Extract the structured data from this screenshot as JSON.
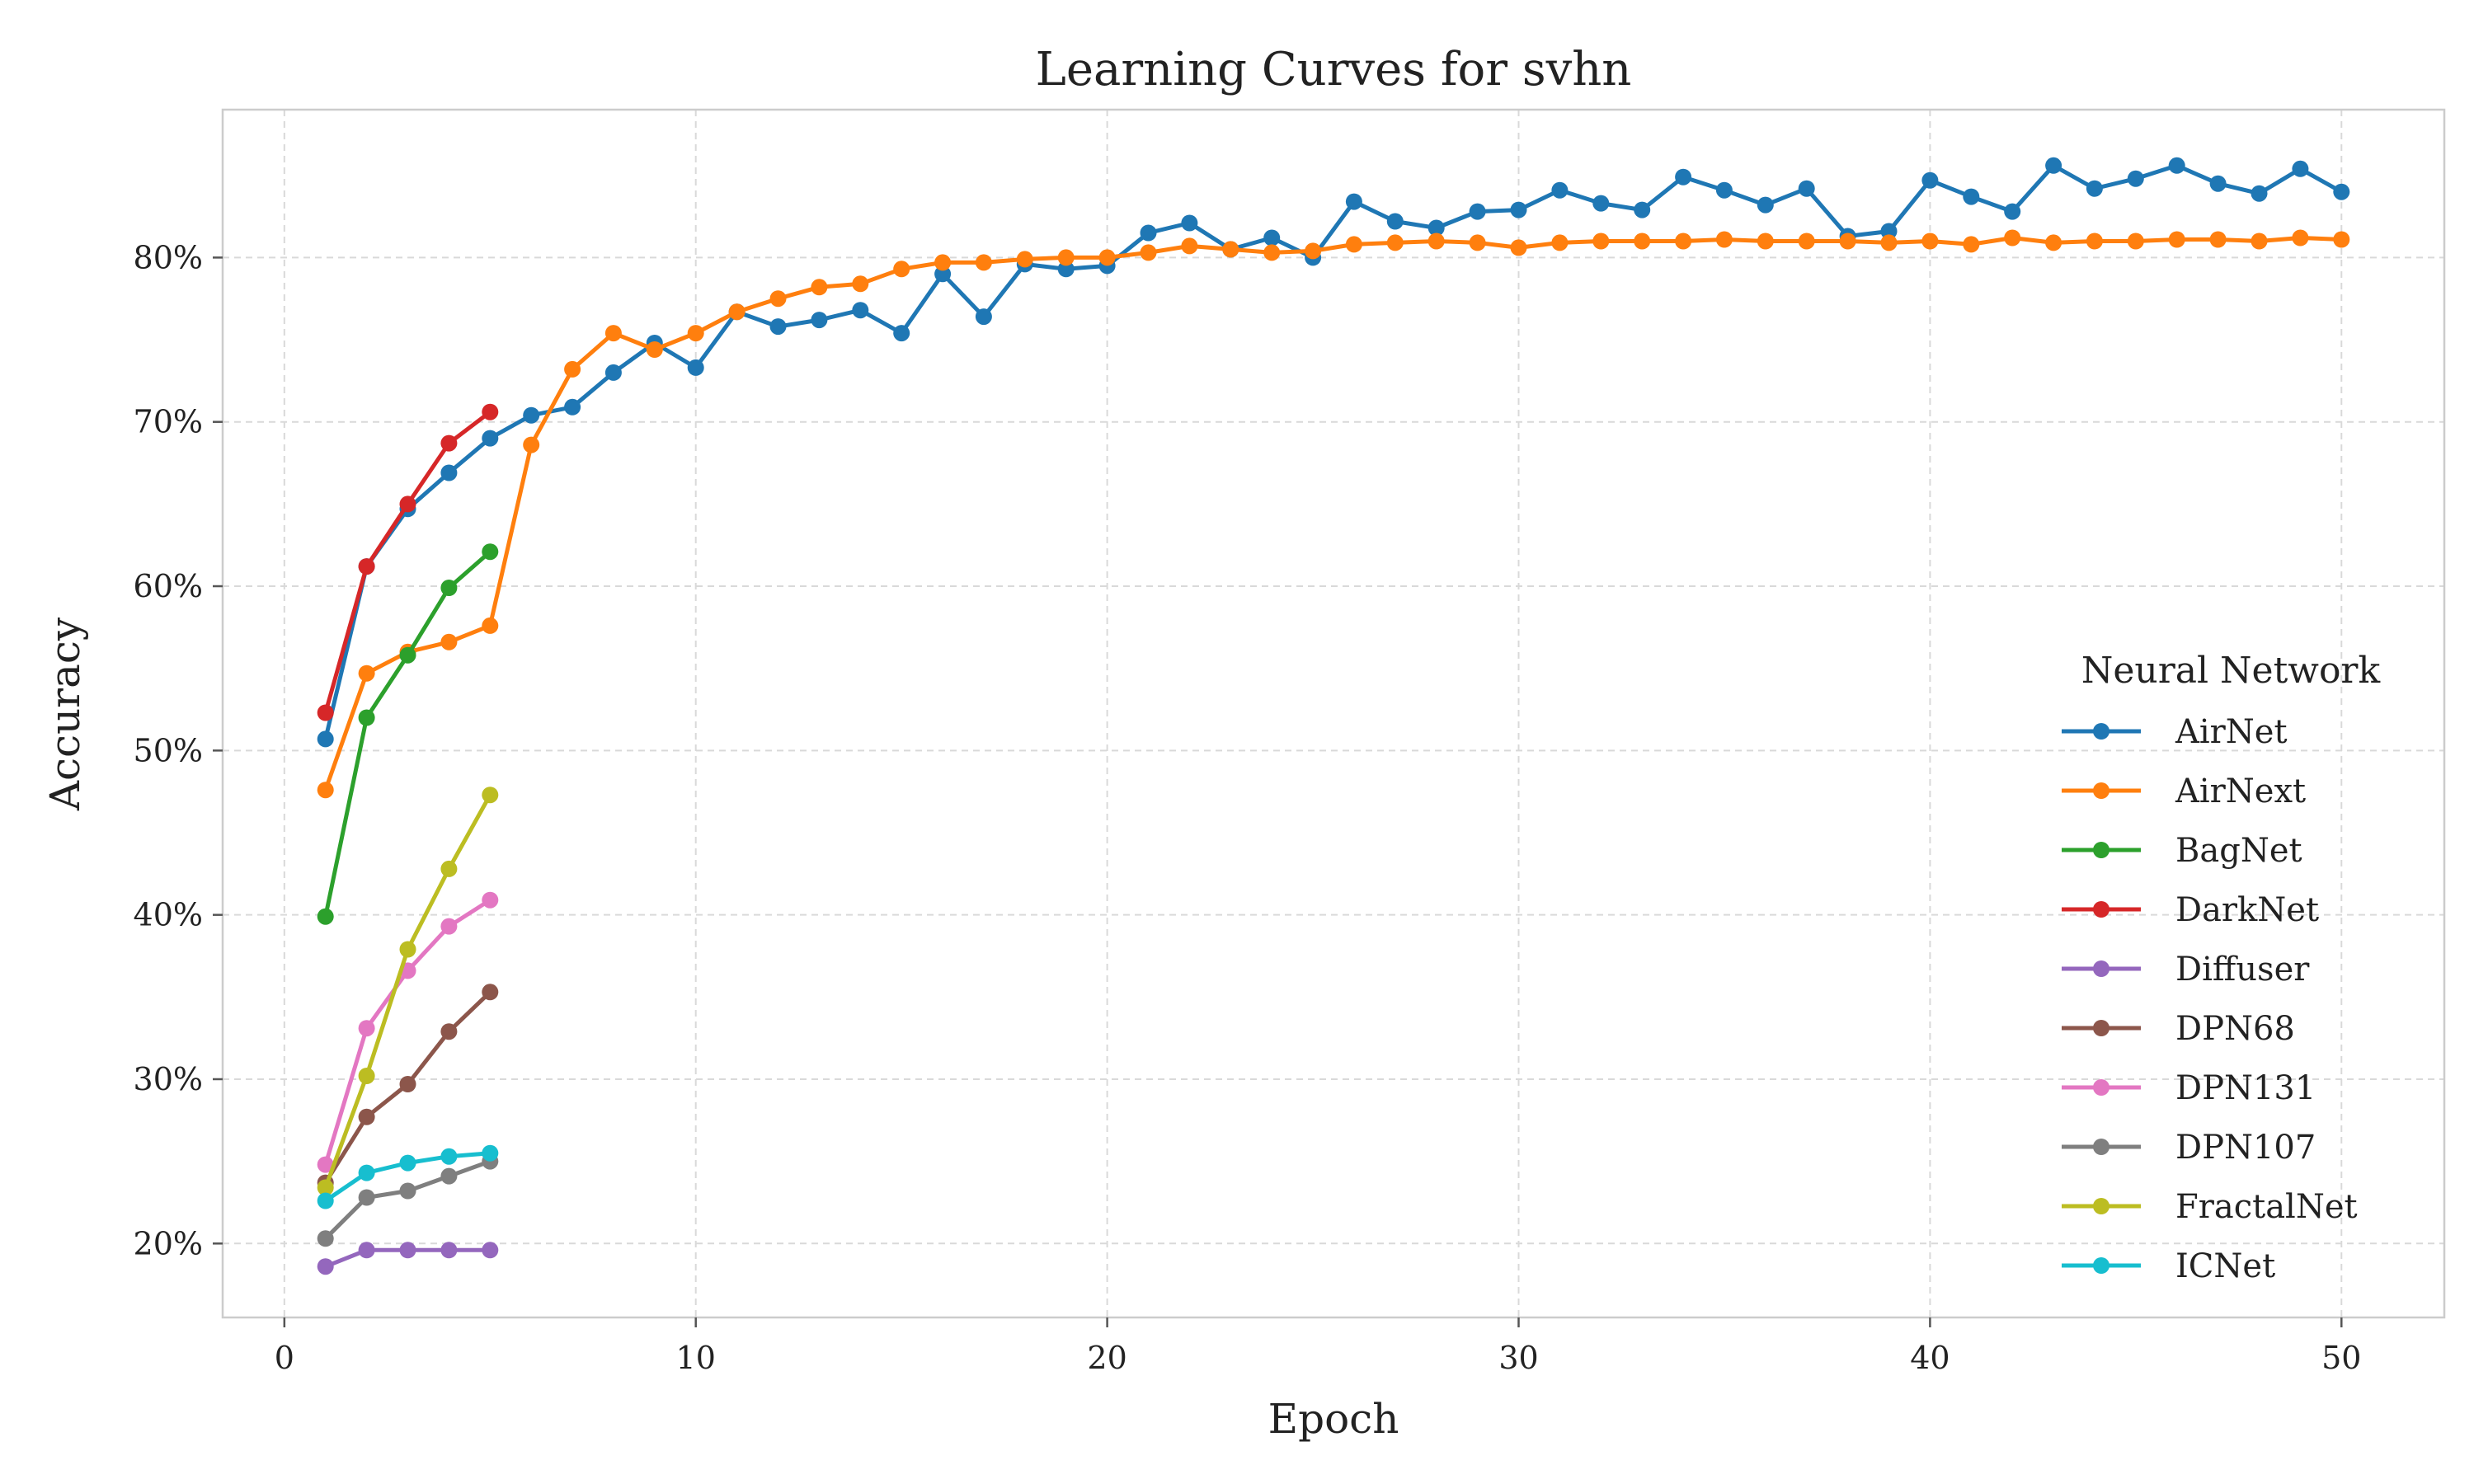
{
  "chart_data": {
    "type": "line",
    "title": "Learning Curves for svhn",
    "xlabel": "Epoch",
    "ylabel": "Accuracy",
    "xlim": [
      -1.5,
      52.5
    ],
    "ylim": [
      15.5,
      89.0
    ],
    "x_ticks": [
      0,
      10,
      20,
      30,
      40,
      50
    ],
    "x_tick_labels": [
      "0",
      "10",
      "20",
      "30",
      "40",
      "50"
    ],
    "y_ticks": [
      20,
      30,
      40,
      50,
      60,
      70,
      80
    ],
    "y_tick_labels": [
      "20%",
      "30%",
      "40%",
      "50%",
      "60%",
      "70%",
      "80%"
    ],
    "grid": true,
    "legend": {
      "title": "Neural Network",
      "placement": "right"
    },
    "series": [
      {
        "name": "AirNet",
        "color": "#1f77b4",
        "x": [
          1,
          2,
          3,
          4,
          5,
          6,
          7,
          8,
          9,
          10,
          11,
          12,
          13,
          14,
          15,
          16,
          17,
          18,
          19,
          20,
          21,
          22,
          23,
          24,
          25,
          26,
          27,
          28,
          29,
          30,
          31,
          32,
          33,
          34,
          35,
          36,
          37,
          38,
          39,
          40,
          41,
          42,
          43,
          44,
          45,
          46,
          47,
          48,
          49,
          50
        ],
        "y": [
          50.7,
          61.2,
          64.7,
          66.9,
          69.0,
          70.4,
          70.9,
          73.0,
          74.8,
          73.3,
          76.7,
          75.8,
          76.2,
          76.8,
          75.4,
          79.0,
          76.4,
          79.6,
          79.3,
          79.5,
          81.5,
          82.1,
          80.5,
          81.2,
          80.0,
          83.4,
          82.2,
          81.8,
          82.8,
          82.9,
          84.1,
          83.3,
          82.9,
          84.9,
          84.1,
          83.2,
          84.2,
          81.3,
          81.6,
          84.7,
          83.7,
          82.8,
          85.6,
          84.2,
          84.8,
          85.6,
          84.5,
          83.9,
          85.4,
          84.0
        ]
      },
      {
        "name": "AirNext",
        "color": "#ff7f0e",
        "x": [
          1,
          2,
          3,
          4,
          5,
          6,
          7,
          8,
          9,
          10,
          11,
          12,
          13,
          14,
          15,
          16,
          17,
          18,
          19,
          20,
          21,
          22,
          23,
          24,
          25,
          26,
          27,
          28,
          29,
          30,
          31,
          32,
          33,
          34,
          35,
          36,
          37,
          38,
          39,
          40,
          41,
          42,
          43,
          44,
          45,
          46,
          47,
          48,
          49,
          50
        ],
        "y": [
          47.6,
          54.7,
          56.0,
          56.6,
          57.6,
          68.6,
          73.2,
          75.4,
          74.4,
          75.4,
          76.7,
          77.5,
          78.2,
          78.4,
          79.3,
          79.7,
          79.7,
          79.9,
          80.0,
          80.0,
          80.3,
          80.7,
          80.5,
          80.3,
          80.4,
          80.8,
          80.9,
          81.0,
          80.9,
          80.6,
          80.9,
          81.0,
          81.0,
          81.0,
          81.1,
          81.0,
          81.0,
          81.0,
          80.9,
          81.0,
          80.8,
          81.2,
          80.9,
          81.0,
          81.0,
          81.1,
          81.1,
          81.0,
          81.2,
          81.1
        ]
      },
      {
        "name": "BagNet",
        "color": "#2ca02c",
        "x": [
          1,
          2,
          3,
          4,
          5
        ],
        "y": [
          39.9,
          52.0,
          55.8,
          59.9,
          62.1
        ]
      },
      {
        "name": "DarkNet",
        "color": "#d62728",
        "x": [
          1,
          2,
          3,
          4,
          5
        ],
        "y": [
          52.3,
          61.2,
          65.0,
          68.7,
          70.6
        ]
      },
      {
        "name": "Diffuser",
        "color": "#9467bd",
        "x": [
          1,
          2,
          3,
          4,
          5
        ],
        "y": [
          18.6,
          19.6,
          19.6,
          19.6,
          19.6
        ]
      },
      {
        "name": "DPN68",
        "color": "#8c564b",
        "x": [
          1,
          2,
          3,
          4,
          5
        ],
        "y": [
          23.7,
          27.7,
          29.7,
          32.9,
          35.3
        ]
      },
      {
        "name": "DPN131",
        "color": "#e377c2",
        "x": [
          1,
          2,
          3,
          4,
          5
        ],
        "y": [
          24.8,
          33.1,
          36.6,
          39.3,
          40.9
        ]
      },
      {
        "name": "DPN107",
        "color": "#7f7f7f",
        "x": [
          1,
          2,
          3,
          4,
          5
        ],
        "y": [
          20.3,
          22.8,
          23.2,
          24.1,
          25.0
        ]
      },
      {
        "name": "FractalNet",
        "color": "#bcbd22",
        "x": [
          1,
          2,
          3,
          4,
          5
        ],
        "y": [
          23.4,
          30.2,
          37.9,
          42.8,
          47.3
        ]
      },
      {
        "name": "ICNet",
        "color": "#17becf",
        "x": [
          1,
          2,
          3,
          4,
          5
        ],
        "y": [
          22.6,
          24.3,
          24.9,
          25.3,
          25.5
        ]
      }
    ]
  }
}
